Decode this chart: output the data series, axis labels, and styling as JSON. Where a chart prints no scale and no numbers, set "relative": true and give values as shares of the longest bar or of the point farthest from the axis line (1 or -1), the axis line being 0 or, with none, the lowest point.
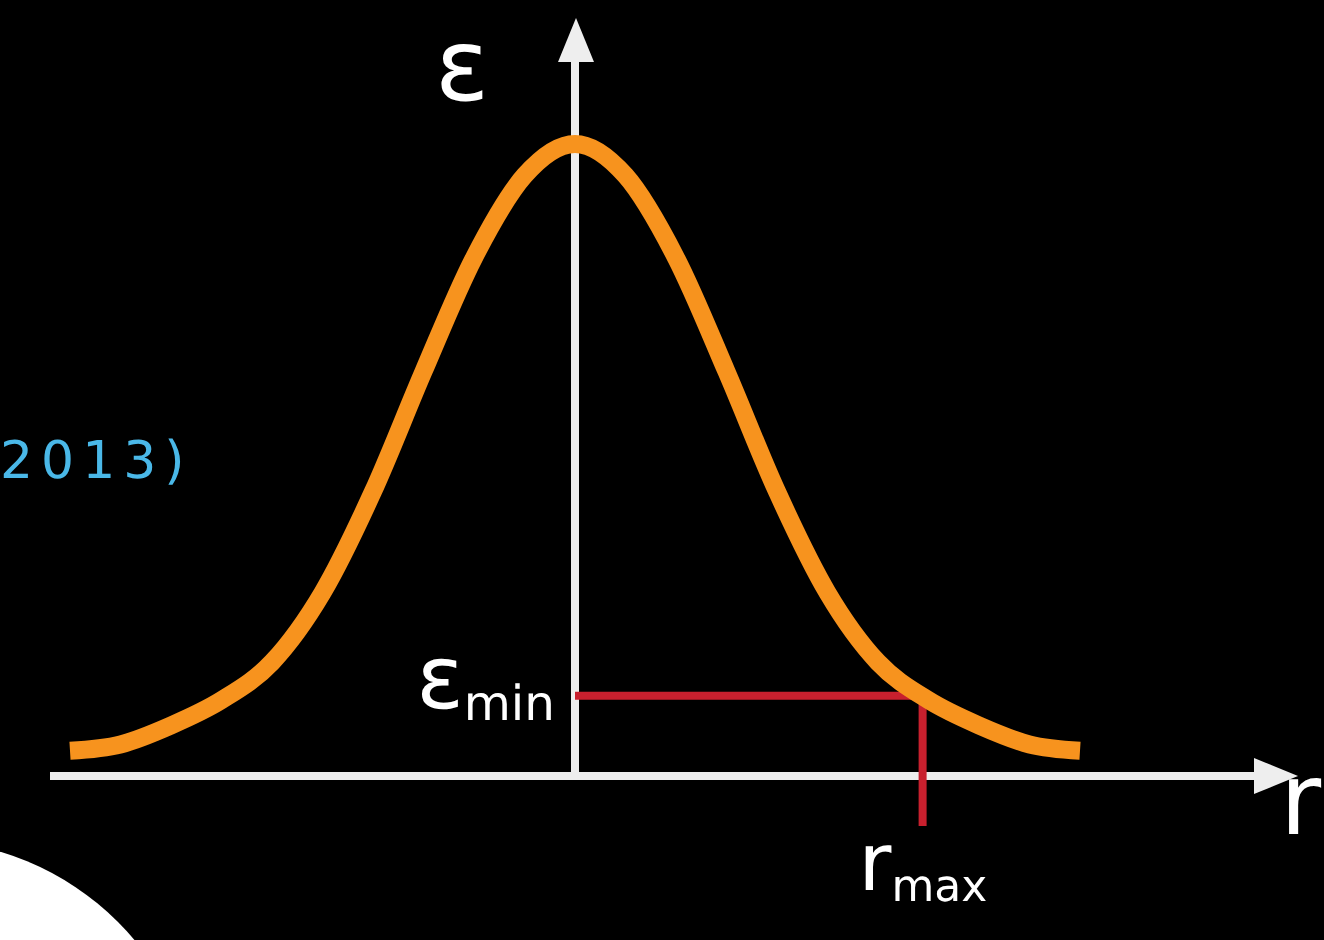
{
  "chart_data": {
    "type": "line",
    "relative": true,
    "xlabel": "r",
    "ylabel": "ε",
    "color": "#f7931e",
    "categories": [
      null,
      null,
      null,
      null,
      null,
      null,
      null,
      null,
      null,
      null,
      null,
      null,
      null,
      null,
      null,
      null,
      null,
      null,
      null,
      null,
      null
    ],
    "values": [
      0.04,
      0.05,
      0.08,
      0.12,
      0.18,
      0.29,
      0.45,
      0.64,
      0.82,
      0.95,
      1.0,
      0.95,
      0.82,
      0.64,
      0.45,
      0.29,
      0.18,
      0.12,
      0.08,
      0.05,
      0.04
    ],
    "ref_lines": [
      {
        "axis": "y",
        "value": 0.127,
        "label": "ε$_{min}$",
        "color": "#c8202e"
      }
    ],
    "annotations": [
      "r$_{max}$",
      "2013)"
    ]
  }
}
